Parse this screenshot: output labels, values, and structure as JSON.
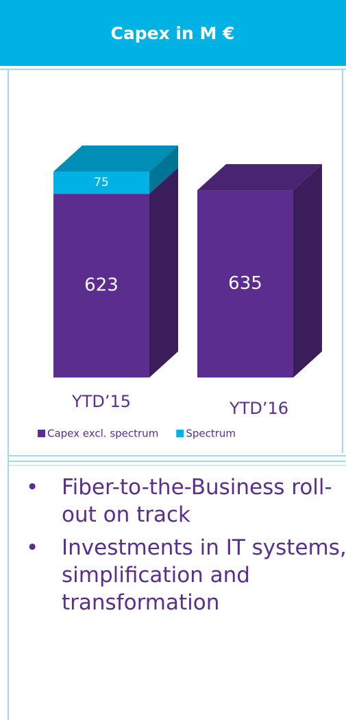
{
  "chart_data": {
    "type": "stacked-bar-3d",
    "title": "Capex in M €",
    "categories": [
      "YTD’15",
      "YTD’16"
    ],
    "series": [
      {
        "name": "Capex excl. spectrum",
        "color": "#5b2d8e",
        "values": [
          623,
          635
        ]
      },
      {
        "name": "Spectrum",
        "color": "#00b2e3",
        "values": [
          75,
          null
        ]
      }
    ]
  },
  "bullets": [
    "Fiber-to-the-Business roll-out on track",
    "Investments in IT systems, simplification and transformation"
  ]
}
